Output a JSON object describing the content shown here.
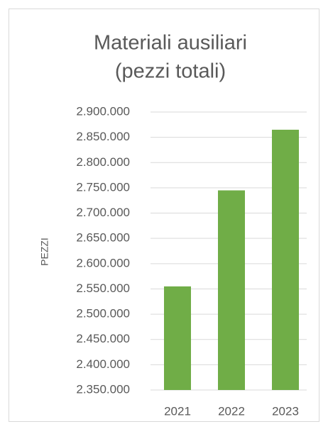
{
  "chart_data": {
    "type": "bar",
    "title": [
      "Materiali ausiliari",
      "(pezzi totali)"
    ],
    "y_label": "PEZZI",
    "categories": [
      "2021",
      "2022",
      "2023"
    ],
    "values": [
      2555000,
      2745000,
      2865000
    ],
    "color": "#70ad47",
    "ylim": [
      2350000,
      2900000
    ],
    "yticks": [
      {
        "value": 2350000,
        "label": "2.350.000"
      },
      {
        "value": 2400000,
        "label": "2.400.000"
      },
      {
        "value": 2450000,
        "label": "2.450.000"
      },
      {
        "value": 2500000,
        "label": "2.500.000"
      },
      {
        "value": 2550000,
        "label": "2.550.000"
      },
      {
        "value": 2600000,
        "label": "2.600.000"
      },
      {
        "value": 2650000,
        "label": "2.650.000"
      },
      {
        "value": 2700000,
        "label": "2.700.000"
      },
      {
        "value": 2750000,
        "label": "2.750.000"
      },
      {
        "value": 2800000,
        "label": "2.800.000"
      },
      {
        "value": 2850000,
        "label": "2.850.000"
      },
      {
        "value": 2900000,
        "label": "2.900.000"
      }
    ],
    "grid": true
  }
}
